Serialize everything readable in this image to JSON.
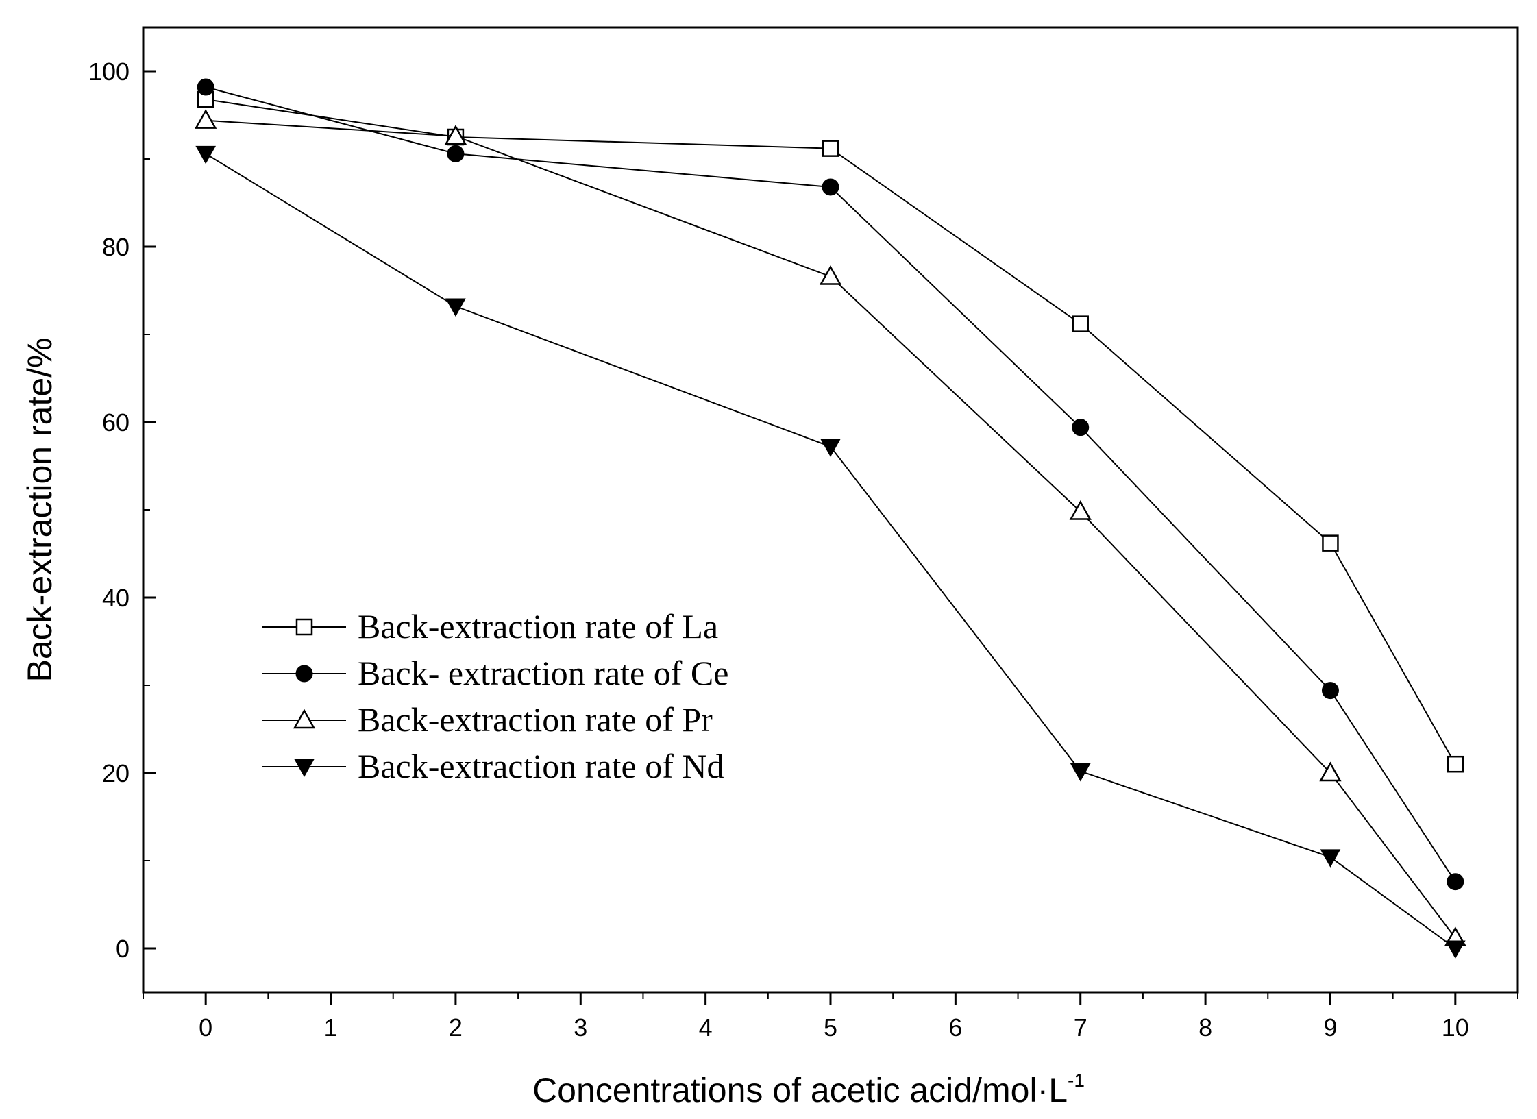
{
  "chart_data": {
    "type": "line",
    "xlabel": "Concentrations of acetic acid/mol·L",
    "xlabel_sup": "-1",
    "ylabel": "Back-extraction rate/%",
    "xlim": [
      -0.5,
      10.5
    ],
    "ylim": [
      -5,
      105
    ],
    "x_ticks": [
      "0",
      "1",
      "2",
      "3",
      "4",
      "5",
      "6",
      "7",
      "8",
      "9",
      "10"
    ],
    "y_ticks": [
      "0",
      "20",
      "40",
      "60",
      "80",
      "100"
    ],
    "grid": false,
    "legend_position": "lower-left",
    "x": [
      0,
      2,
      5,
      7,
      9,
      10
    ],
    "series": [
      {
        "name": "Back-extraction rate of La",
        "marker": "open-square",
        "values": [
          96.8,
          92.5,
          91.2,
          71.2,
          46.2,
          21.0
        ]
      },
      {
        "name": "Back- extraction rate of Ce",
        "marker": "filled-circle",
        "values": [
          98.2,
          90.6,
          86.8,
          59.4,
          29.4,
          7.6
        ]
      },
      {
        "name": "Back-extraction rate of Pr",
        "marker": "open-triangle-up",
        "values": [
          94.4,
          92.6,
          76.6,
          49.8,
          20.0,
          1.2
        ]
      },
      {
        "name": "Back-extraction rate of Nd",
        "marker": "filled-triangle-down",
        "values": [
          90.6,
          73.2,
          57.2,
          20.2,
          10.4,
          0.0
        ]
      }
    ]
  }
}
